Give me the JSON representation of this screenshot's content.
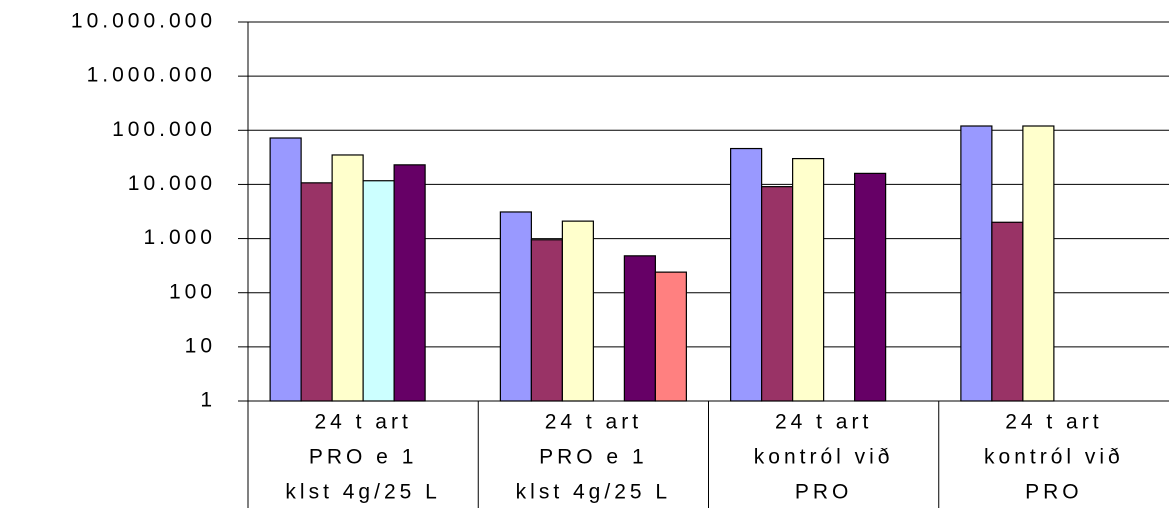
{
  "chart_data": {
    "type": "bar",
    "log_scale": true,
    "grid": true,
    "categories": [
      [
        "24 t art",
        "PRO e 1",
        "klst 4g/25 L"
      ],
      [
        "24 t art",
        "PRO e 1",
        "klst 4g/25 L"
      ],
      [
        "24 t art",
        "kontról við",
        "PRO"
      ],
      [
        "24 t art",
        "kontról við",
        "PRO"
      ]
    ],
    "series": [
      {
        "color": "#9999ff",
        "values": [
          72000,
          3100,
          46000,
          120000
        ]
      },
      {
        "color": "#993366",
        "values": [
          10700,
          950,
          9100,
          2000
        ]
      },
      {
        "color": "#ffffcc",
        "values": [
          35000,
          2100,
          30000,
          120000
        ]
      },
      {
        "color": "#ccffff",
        "values": [
          11700,
          null,
          null,
          null
        ]
      },
      {
        "color": "#660066",
        "values": [
          23000,
          480,
          16000,
          null
        ]
      },
      {
        "color": "#ff8080",
        "values": [
          null,
          240,
          null,
          null
        ]
      }
    ],
    "ylim": [
      1,
      10000000
    ],
    "yticks": [
      1,
      10,
      100,
      {
        "value": 1000,
        "label": "1.000"
      },
      {
        "value": 10000,
        "label": "10.000"
      },
      {
        "value": 100000,
        "label": "100.000"
      },
      {
        "value": 1000000,
        "label": "1.000.000"
      },
      {
        "value": 10000000,
        "label": "10.000.000"
      }
    ]
  }
}
